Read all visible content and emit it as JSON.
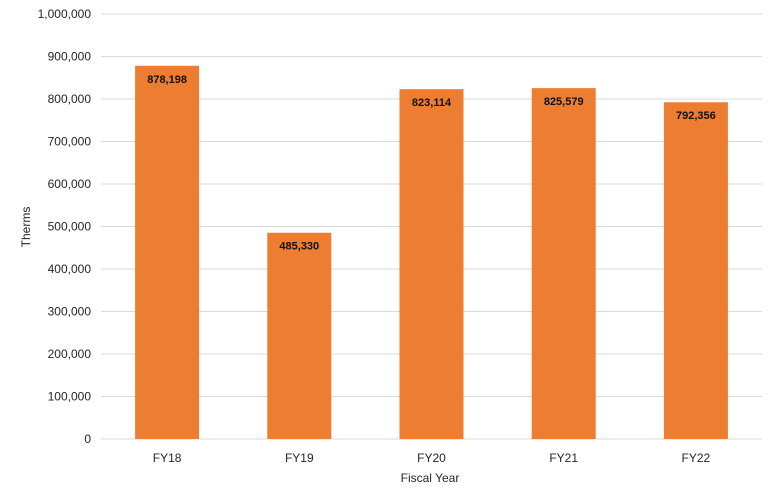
{
  "chart_data": {
    "type": "bar",
    "categories": [
      "FY18",
      "FY19",
      "FY20",
      "FY21",
      "FY22"
    ],
    "values": [
      878198,
      485330,
      823114,
      825579,
      792356
    ],
    "data_labels": [
      "878,198",
      "485,330",
      "823,114",
      "825,579",
      "792,356"
    ],
    "xlabel": "Fiscal Year",
    "ylabel": "Therms",
    "ylim": [
      0,
      1000000
    ],
    "yticks": [
      0,
      100000,
      200000,
      300000,
      400000,
      500000,
      600000,
      700000,
      800000,
      900000,
      1000000
    ],
    "ytick_labels": [
      "0",
      "100,000",
      "200,000",
      "300,000",
      "400,000",
      "500,000",
      "600,000",
      "700,000",
      "800,000",
      "900,000",
      "1,000,000"
    ],
    "grid": true,
    "legend": "none",
    "colors": {
      "bar": "#ED7D31",
      "grid": "#D9D9D9"
    }
  }
}
